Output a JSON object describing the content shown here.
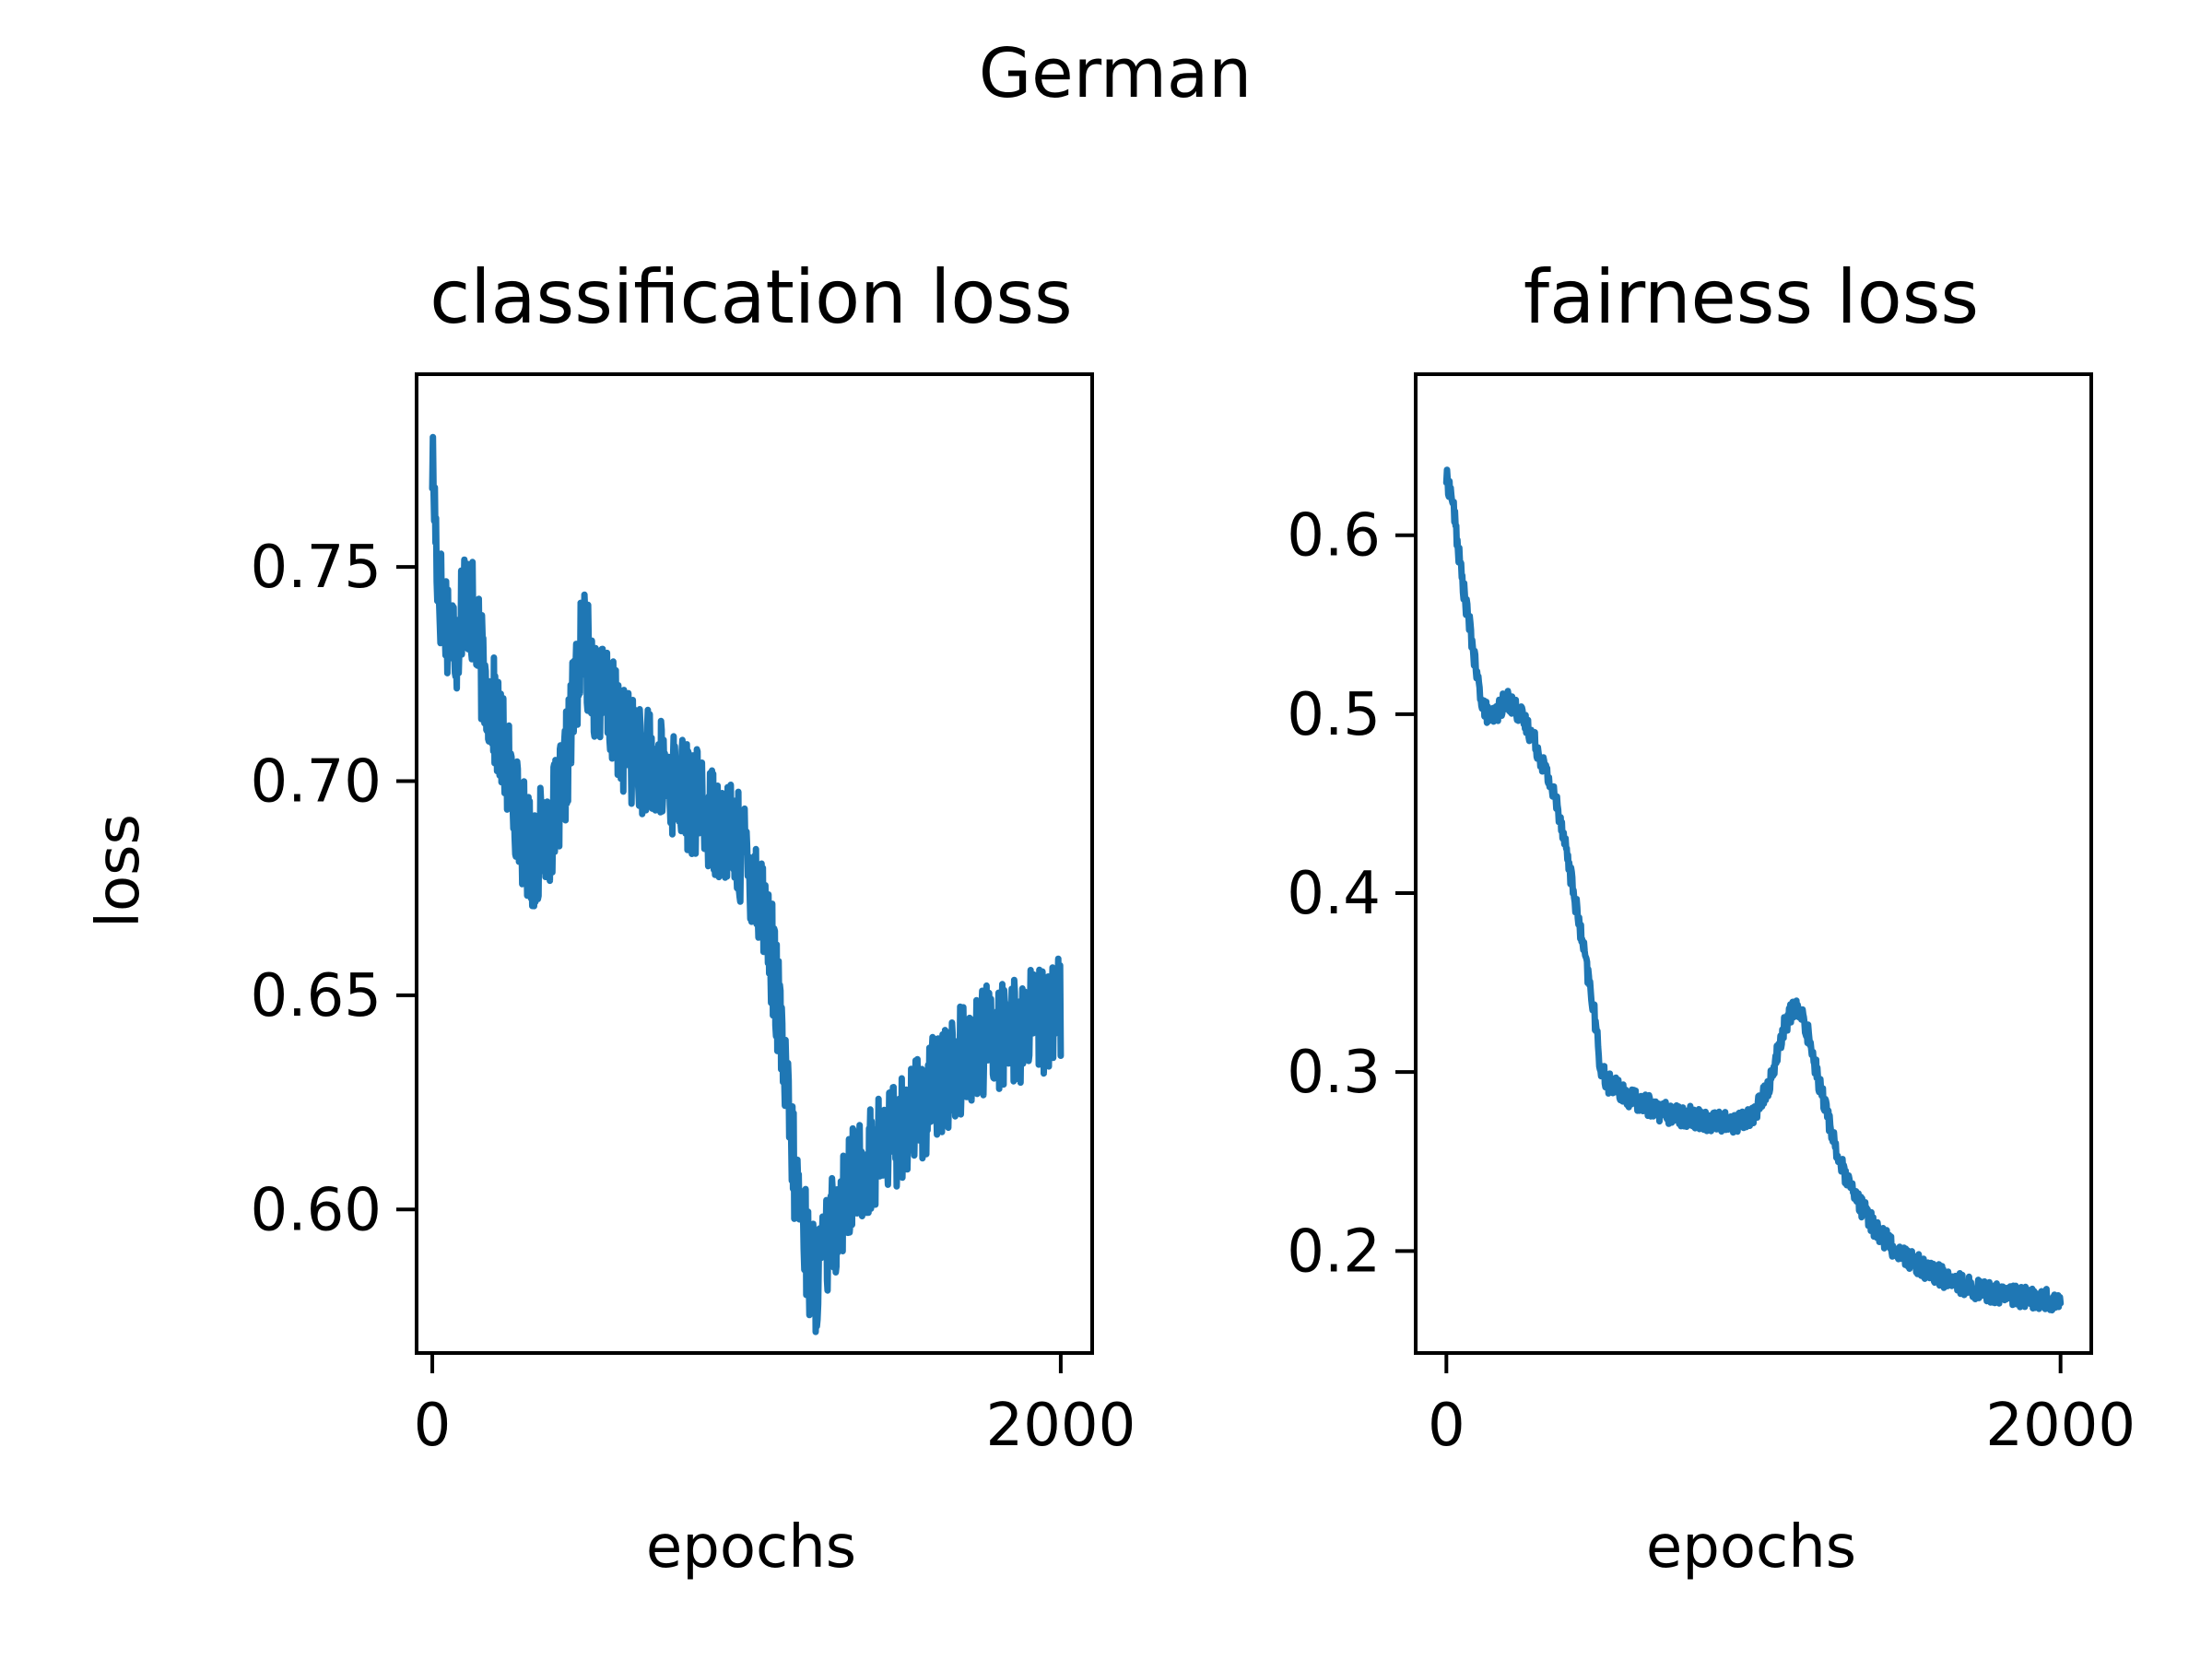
{
  "figure": {
    "suptitle": "German"
  },
  "chart_data": [
    {
      "type": "line",
      "title": "classification loss",
      "xlabel": "epochs",
      "ylabel": "loss",
      "xlim": [
        -50,
        2100
      ],
      "ylim": [
        0.5665,
        0.795
      ],
      "xticks": [
        0,
        2000
      ],
      "xtick_labels": [
        "0",
        "2000"
      ],
      "yticks": [
        0.6,
        0.65,
        0.7,
        0.75
      ],
      "ytick_labels": [
        "0.60",
        "0.65",
        "0.70",
        "0.75"
      ],
      "grid": false,
      "color": "#1f77b4",
      "x": [
        0,
        20,
        40,
        60,
        80,
        100,
        130,
        160,
        200,
        240,
        280,
        320,
        360,
        400,
        420,
        440,
        460,
        480,
        520,
        560,
        600,
        650,
        700,
        760,
        820,
        880,
        940,
        1000,
        1050,
        1080,
        1100,
        1120,
        1150,
        1180,
        1200,
        1220,
        1240,
        1260,
        1280,
        1300,
        1350,
        1400,
        1450,
        1500,
        1550,
        1600,
        1650,
        1700,
        1750,
        1800,
        1850,
        1900,
        1950,
        2000
      ],
      "y": [
        0.775,
        0.745,
        0.74,
        0.735,
        0.733,
        0.745,
        0.738,
        0.725,
        0.715,
        0.703,
        0.69,
        0.682,
        0.688,
        0.693,
        0.7,
        0.712,
        0.724,
        0.733,
        0.722,
        0.718,
        0.711,
        0.706,
        0.703,
        0.7,
        0.696,
        0.692,
        0.688,
        0.682,
        0.672,
        0.66,
        0.647,
        0.632,
        0.61,
        0.597,
        0.587,
        0.584,
        0.587,
        0.592,
        0.597,
        0.602,
        0.608,
        0.612,
        0.616,
        0.62,
        0.624,
        0.628,
        0.632,
        0.636,
        0.639,
        0.641,
        0.642,
        0.643,
        0.644,
        0.646
      ],
      "noise": 0.013
    },
    {
      "type": "line",
      "title": "fairness loss",
      "xlabel": "epochs",
      "ylabel": "",
      "xlim": [
        -100,
        2100
      ],
      "ylim": [
        0.143,
        0.69
      ],
      "xticks": [
        0,
        2000
      ],
      "xtick_labels": [
        "0",
        "2000"
      ],
      "yticks": [
        0.2,
        0.3,
        0.4,
        0.5,
        0.6
      ],
      "ytick_labels": [
        "0.2",
        "0.3",
        "0.4",
        "0.5",
        "0.6"
      ],
      "grid": false,
      "color": "#1f77b4",
      "x": [
        0,
        20,
        40,
        60,
        80,
        100,
        120,
        140,
        160,
        180,
        200,
        240,
        280,
        320,
        360,
        380,
        400,
        420,
        440,
        460,
        480,
        500,
        520,
        560,
        600,
        650,
        700,
        750,
        800,
        850,
        900,
        950,
        1000,
        1050,
        1080,
        1100,
        1120,
        1140,
        1160,
        1180,
        1200,
        1220,
        1250,
        1280,
        1310,
        1350,
        1400,
        1450,
        1500,
        1550,
        1600,
        1650,
        1700,
        1750,
        1800,
        1850,
        1900,
        1950,
        2000
      ],
      "y": [
        0.632,
        0.62,
        0.59,
        0.565,
        0.545,
        0.52,
        0.505,
        0.498,
        0.5,
        0.505,
        0.508,
        0.5,
        0.488,
        0.47,
        0.45,
        0.435,
        0.415,
        0.395,
        0.375,
        0.355,
        0.335,
        0.305,
        0.295,
        0.29,
        0.285,
        0.282,
        0.278,
        0.276,
        0.275,
        0.273,
        0.272,
        0.272,
        0.276,
        0.292,
        0.312,
        0.325,
        0.333,
        0.335,
        0.33,
        0.32,
        0.305,
        0.29,
        0.27,
        0.25,
        0.237,
        0.225,
        0.212,
        0.203,
        0.196,
        0.191,
        0.187,
        0.183,
        0.18,
        0.178,
        0.176,
        0.175,
        0.174,
        0.173,
        0.171
      ],
      "noise": 0.006
    }
  ]
}
